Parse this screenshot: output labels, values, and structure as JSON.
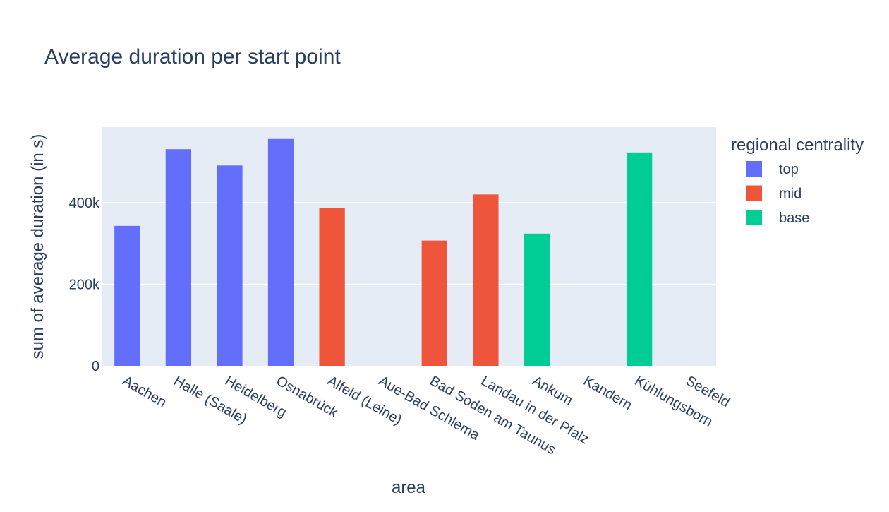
{
  "chart_data": {
    "type": "bar",
    "title": "Average duration per start point",
    "xlabel": "area",
    "ylabel": "sum of average duration (in s)",
    "categories": [
      "Aachen",
      "Halle (Saale)",
      "Heidelberg",
      "Osnabrück",
      "Alfeld (Leine)",
      "Aue-Bad Schlema",
      "Bad Soden am Taunus",
      "Landau in der Pfalz",
      "Ankum",
      "Kandern",
      "Kühlungsborn",
      "Seefeld"
    ],
    "legend_title": "regional centrality",
    "legend_position": "right",
    "grid": true,
    "ylim": [
      0,
      585000
    ],
    "yticks": [
      0,
      200000,
      400000
    ],
    "ytick_labels": [
      "0",
      "200k",
      "400k"
    ],
    "series": [
      {
        "name": "top",
        "color": "#636efa",
        "values": [
          343000,
          531000,
          491000,
          556000,
          null,
          null,
          null,
          null,
          null,
          null,
          null,
          null
        ]
      },
      {
        "name": "mid",
        "color": "#ef553b",
        "values": [
          null,
          null,
          null,
          null,
          387000,
          null,
          307000,
          420000,
          null,
          null,
          null,
          null
        ]
      },
      {
        "name": "base",
        "color": "#00cc96",
        "values": [
          null,
          null,
          null,
          null,
          null,
          null,
          null,
          null,
          324000,
          null,
          523000,
          null
        ]
      }
    ]
  }
}
